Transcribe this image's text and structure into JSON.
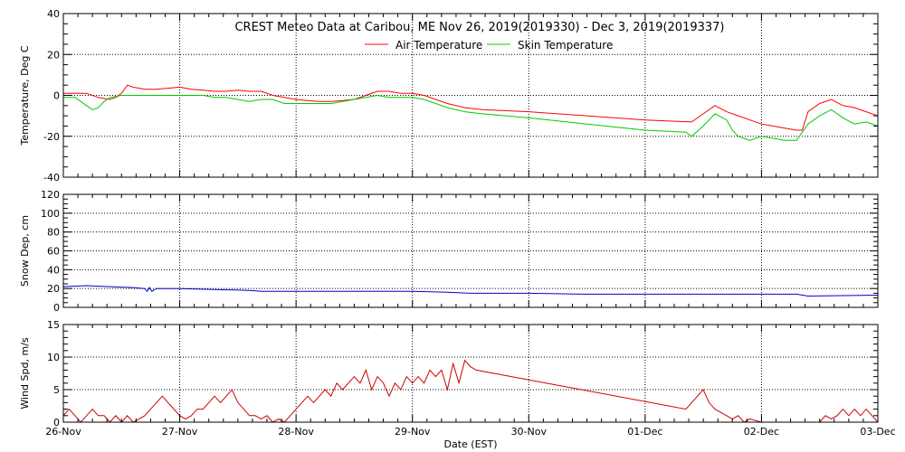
{
  "chart_data": [
    {
      "type": "line",
      "title": "CREST Meteo Data at Caribou, ME   Nov 26, 2019(2019330) - Dec  3, 2019(2019337)",
      "ylabel": "Temperature, Deg C",
      "xlabel": "",
      "xlim": [
        0,
        7
      ],
      "ylim": [
        -40,
        40
      ],
      "yticks": [
        -40,
        -20,
        0,
        20,
        40
      ],
      "y_minor_step": 5,
      "grid": true,
      "legend": "top-center",
      "series": [
        {
          "name": "Air Temperature",
          "color": "#ff0000",
          "x": [
            0,
            0.1,
            0.2,
            0.3,
            0.4,
            0.45,
            0.5,
            0.55,
            0.6,
            0.7,
            0.8,
            0.9,
            1.0,
            1.1,
            1.2,
            1.3,
            1.4,
            1.5,
            1.6,
            1.7,
            1.8,
            1.9,
            2.0,
            2.1,
            2.2,
            2.3,
            2.4,
            2.5,
            2.6,
            2.7,
            2.8,
            2.9,
            3.0,
            3.1,
            3.2,
            3.3,
            3.45,
            3.6,
            4.0,
            4.5,
            5.0,
            5.4,
            5.5,
            5.6,
            5.7,
            5.8,
            5.9,
            6.0,
            6.1,
            6.2,
            6.3,
            6.35,
            6.4,
            6.5,
            6.6,
            6.7,
            6.8,
            6.9,
            7.0
          ],
          "y": [
            1,
            1,
            1,
            -1,
            -2,
            -1,
            1,
            5,
            4,
            3,
            3,
            3.5,
            4,
            3,
            2.5,
            2,
            2,
            2.5,
            2,
            2,
            0,
            -1,
            -2,
            -2.5,
            -3,
            -3,
            -2.5,
            -2,
            0,
            2,
            2,
            1,
            1,
            0,
            -2,
            -4,
            -6,
            -7,
            -8,
            -10,
            -12,
            -13,
            -9,
            -5,
            -8,
            -10,
            -12,
            -14,
            -15,
            -16,
            -17,
            -17,
            -8,
            -4,
            -2,
            -5,
            -6,
            -8,
            -10
          ]
        },
        {
          "name": "Skin Temperature",
          "color": "#00cc00",
          "x": [
            0,
            0.1,
            0.2,
            0.25,
            0.3,
            0.35,
            0.4,
            0.5,
            0.6,
            0.7,
            0.8,
            0.9,
            1.0,
            1.1,
            1.2,
            1.3,
            1.4,
            1.5,
            1.6,
            1.7,
            1.8,
            1.9,
            2.0,
            2.1,
            2.2,
            2.3,
            2.4,
            2.5,
            2.6,
            2.7,
            2.8,
            2.9,
            3.0,
            3.1,
            3.2,
            3.3,
            3.45,
            3.6,
            4.0,
            4.5,
            5.0,
            5.35,
            5.4,
            5.5,
            5.6,
            5.7,
            5.75,
            5.8,
            5.9,
            6.0,
            6.1,
            6.2,
            6.3,
            6.4,
            6.5,
            6.6,
            6.7,
            6.8,
            6.9,
            7.0
          ],
          "y": [
            -1,
            -1,
            -5,
            -7,
            -6,
            -3,
            -1,
            0,
            0,
            0,
            0,
            0,
            0,
            0,
            0,
            -1,
            -1,
            -2,
            -3,
            -2,
            -2,
            -4,
            -4,
            -4,
            -4,
            -4,
            -3,
            -2,
            -1,
            0,
            -1,
            -1,
            -1,
            -2,
            -4,
            -6,
            -8,
            -9,
            -11,
            -14,
            -17,
            -18,
            -20,
            -15,
            -9,
            -12,
            -17,
            -20,
            -22,
            -20,
            -21,
            -22,
            -22,
            -14,
            -10,
            -7,
            -11,
            -14,
            -13,
            -15
          ]
        }
      ]
    },
    {
      "type": "line",
      "title": "",
      "ylabel": "Snow Dep, cm",
      "xlabel": "",
      "xlim": [
        0,
        7
      ],
      "ylim": [
        0,
        120
      ],
      "yticks": [
        0,
        20,
        40,
        60,
        80,
        100,
        120
      ],
      "y_minor_step": 5,
      "grid": true,
      "series": [
        {
          "color": "#0000cc",
          "x": [
            0,
            0.2,
            0.4,
            0.6,
            0.7,
            0.72,
            0.74,
            0.76,
            0.8,
            0.85,
            0.9,
            1.0,
            1.3,
            1.6,
            1.7,
            2.0,
            2.5,
            3.0,
            3.3,
            3.5,
            4.0,
            4.5,
            5.0,
            5.5,
            6.0,
            6.3,
            6.4,
            7.0
          ],
          "y": [
            22,
            23,
            22,
            21,
            20,
            17,
            21,
            17,
            20,
            20,
            20,
            20,
            19,
            18,
            17,
            17,
            17,
            17,
            16,
            15,
            15,
            14,
            14,
            14,
            14,
            14,
            12,
            13
          ]
        }
      ]
    },
    {
      "type": "line",
      "title": "",
      "ylabel": "Wind Spd, m/s",
      "xlabel": "Date (EST)",
      "xlim": [
        0,
        7
      ],
      "ylim": [
        0,
        15
      ],
      "yticks": [
        0,
        5,
        10,
        15
      ],
      "y_minor_step": 1,
      "grid": true,
      "xtick_labels": [
        "26-Nov",
        "27-Nov",
        "28-Nov",
        "29-Nov",
        "30-Nov",
        "01-Dec",
        "02-Dec",
        "03-Dec"
      ],
      "series": [
        {
          "color": "#cc0000",
          "x": [
            0,
            0.05,
            0.1,
            0.15,
            0.2,
            0.25,
            0.3,
            0.35,
            0.4,
            0.45,
            0.5,
            0.55,
            0.6,
            0.65,
            0.7,
            0.75,
            0.8,
            0.85,
            0.9,
            0.95,
            1.0,
            1.05,
            1.1,
            1.15,
            1.2,
            1.25,
            1.3,
            1.35,
            1.4,
            1.45,
            1.5,
            1.55,
            1.6,
            1.65,
            1.7,
            1.75,
            1.8,
            1.85,
            1.9,
            1.95,
            2.0,
            2.05,
            2.1,
            2.15,
            2.2,
            2.25,
            2.3,
            2.35,
            2.4,
            2.45,
            2.5,
            2.55,
            2.6,
            2.65,
            2.7,
            2.75,
            2.8,
            2.85,
            2.9,
            2.95,
            3.0,
            3.05,
            3.1,
            3.15,
            3.2,
            3.25,
            3.3,
            3.35,
            3.4,
            3.45,
            3.5,
            3.55,
            5.35,
            5.4,
            5.45,
            5.5,
            5.55,
            5.6,
            5.65,
            5.7,
            5.75,
            5.8,
            5.85,
            5.9,
            6.0,
            6.1,
            6.2,
            6.3,
            6.4,
            6.5,
            6.55,
            6.6,
            6.65,
            6.7,
            6.75,
            6.8,
            6.85,
            6.9,
            6.95,
            7.0
          ],
          "y": [
            1,
            2,
            1,
            0,
            1,
            2,
            1,
            1,
            0,
            1,
            0,
            1,
            0,
            0.5,
            1,
            2,
            3,
            4,
            3,
            2,
            1,
            0.5,
            1,
            2,
            2,
            3,
            4,
            3,
            4,
            5,
            3,
            2,
            1,
            1,
            0.5,
            1,
            0,
            0.5,
            0,
            1,
            2,
            3,
            4,
            3,
            4,
            5,
            4,
            6,
            5,
            6,
            7,
            6,
            8,
            5,
            7,
            6,
            4,
            6,
            5,
            7,
            6,
            7,
            6,
            8,
            7,
            8,
            5,
            9,
            6,
            9.5,
            8.5,
            8,
            2,
            3,
            4,
            5,
            3,
            2,
            1.5,
            1,
            0.5,
            1,
            0,
            0.5,
            0,
            0,
            0,
            0,
            0,
            0,
            1,
            0.5,
            1,
            2,
            1,
            2,
            1,
            2,
            1,
            0
          ]
        }
      ]
    }
  ]
}
